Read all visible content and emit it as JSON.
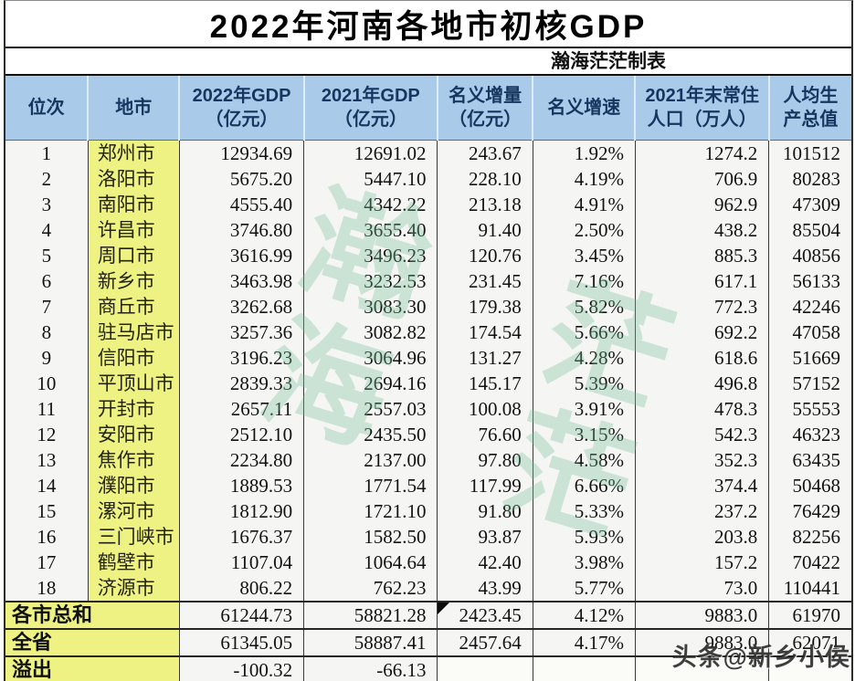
{
  "chart_data": {
    "type": "table",
    "title": "2022年河南各地市初核GDP",
    "maker_note": "瀚海茫茫制表",
    "columns": [
      {
        "line1": "位次",
        "line2": ""
      },
      {
        "line1": "地市",
        "line2": ""
      },
      {
        "line1": "2022年GDP",
        "line2": "（亿元）"
      },
      {
        "line1": "2021年GDP",
        "line2": "（亿元）"
      },
      {
        "line1": "名义增量",
        "line2": "（亿元）"
      },
      {
        "line1": "名义增速",
        "line2": ""
      },
      {
        "line1": "2021年末常住",
        "line2": "人口（万人）"
      },
      {
        "line1": "人均生",
        "line2": "产总值"
      }
    ],
    "rows": [
      {
        "rank": "1",
        "city": "郑州市",
        "gdp_2022": "12934.69",
        "gdp_2021": "12691.02",
        "nominal_increase": "243.67",
        "nominal_growth": "1.92%",
        "population": "1274.2",
        "per_capita": "101512"
      },
      {
        "rank": "2",
        "city": "洛阳市",
        "gdp_2022": "5675.20",
        "gdp_2021": "5447.10",
        "nominal_increase": "228.10",
        "nominal_growth": "4.19%",
        "population": "706.9",
        "per_capita": "80283"
      },
      {
        "rank": "3",
        "city": "南阳市",
        "gdp_2022": "4555.40",
        "gdp_2021": "4342.22",
        "nominal_increase": "213.18",
        "nominal_growth": "4.91%",
        "population": "962.9",
        "per_capita": "47309"
      },
      {
        "rank": "4",
        "city": "许昌市",
        "gdp_2022": "3746.80",
        "gdp_2021": "3655.40",
        "nominal_increase": "91.40",
        "nominal_growth": "2.50%",
        "population": "438.2",
        "per_capita": "85504"
      },
      {
        "rank": "5",
        "city": "周口市",
        "gdp_2022": "3616.99",
        "gdp_2021": "3496.23",
        "nominal_increase": "120.76",
        "nominal_growth": "3.45%",
        "population": "885.3",
        "per_capita": "40856"
      },
      {
        "rank": "6",
        "city": "新乡市",
        "gdp_2022": "3463.98",
        "gdp_2021": "3232.53",
        "nominal_increase": "231.45",
        "nominal_growth": "7.16%",
        "population": "617.1",
        "per_capita": "56133"
      },
      {
        "rank": "7",
        "city": "商丘市",
        "gdp_2022": "3262.68",
        "gdp_2021": "3083.30",
        "nominal_increase": "179.38",
        "nominal_growth": "5.82%",
        "population": "772.3",
        "per_capita": "42246"
      },
      {
        "rank": "8",
        "city": "驻马店市",
        "gdp_2022": "3257.36",
        "gdp_2021": "3082.82",
        "nominal_increase": "174.54",
        "nominal_growth": "5.66%",
        "population": "692.2",
        "per_capita": "47058"
      },
      {
        "rank": "9",
        "city": "信阳市",
        "gdp_2022": "3196.23",
        "gdp_2021": "3064.96",
        "nominal_increase": "131.27",
        "nominal_growth": "4.28%",
        "population": "618.6",
        "per_capita": "51669"
      },
      {
        "rank": "10",
        "city": "平顶山市",
        "gdp_2022": "2839.33",
        "gdp_2021": "2694.16",
        "nominal_increase": "145.17",
        "nominal_growth": "5.39%",
        "population": "496.8",
        "per_capita": "57152"
      },
      {
        "rank": "11",
        "city": "开封市",
        "gdp_2022": "2657.11",
        "gdp_2021": "2557.03",
        "nominal_increase": "100.08",
        "nominal_growth": "3.91%",
        "population": "478.3",
        "per_capita": "55553"
      },
      {
        "rank": "12",
        "city": "安阳市",
        "gdp_2022": "2512.10",
        "gdp_2021": "2435.50",
        "nominal_increase": "76.60",
        "nominal_growth": "3.15%",
        "population": "542.3",
        "per_capita": "46323"
      },
      {
        "rank": "13",
        "city": "焦作市",
        "gdp_2022": "2234.80",
        "gdp_2021": "2137.00",
        "nominal_increase": "97.80",
        "nominal_growth": "4.58%",
        "population": "352.3",
        "per_capita": "63435"
      },
      {
        "rank": "14",
        "city": "濮阳市",
        "gdp_2022": "1889.53",
        "gdp_2021": "1771.54",
        "nominal_increase": "117.99",
        "nominal_growth": "6.66%",
        "population": "374.4",
        "per_capita": "50468"
      },
      {
        "rank": "15",
        "city": "漯河市",
        "gdp_2022": "1812.90",
        "gdp_2021": "1721.10",
        "nominal_increase": "91.80",
        "nominal_growth": "5.33%",
        "population": "237.2",
        "per_capita": "76429"
      },
      {
        "rank": "16",
        "city": "三门峡市",
        "gdp_2022": "1676.37",
        "gdp_2021": "1582.50",
        "nominal_increase": "93.87",
        "nominal_growth": "5.93%",
        "population": "203.8",
        "per_capita": "82256"
      },
      {
        "rank": "17",
        "city": "鹤壁市",
        "gdp_2022": "1107.04",
        "gdp_2021": "1064.64",
        "nominal_increase": "42.40",
        "nominal_growth": "3.98%",
        "population": "157.2",
        "per_capita": "70422"
      },
      {
        "rank": "18",
        "city": "济源市",
        "gdp_2022": "806.22",
        "gdp_2021": "762.23",
        "nominal_increase": "43.99",
        "nominal_growth": "5.77%",
        "population": "73.0",
        "per_capita": "110441"
      }
    ],
    "summary": [
      {
        "label": "各市总和",
        "gdp_2022": "61244.73",
        "gdp_2021": "58821.28",
        "nominal_increase": "2423.45",
        "nominal_growth": "4.12%",
        "population": "9883.0",
        "per_capita": "61970"
      },
      {
        "label": "全省",
        "gdp_2022": "61345.05",
        "gdp_2021": "58887.41",
        "nominal_increase": "2457.64",
        "nominal_growth": "4.17%",
        "population": "9883.0",
        "per_capita": "62071"
      },
      {
        "label": "溢出",
        "gdp_2022": "-100.32",
        "gdp_2021": "-66.13",
        "nominal_increase": "",
        "nominal_growth": "",
        "population": "",
        "per_capita": ""
      }
    ]
  },
  "watermarks": {
    "calligraphy_left": "瀚海",
    "calligraphy_right": "茫茫",
    "footer": "头条@新乡小侯"
  },
  "colors": {
    "header_bg": "#a9cbe9",
    "header_text": "#16365f",
    "highlight_yellow": "#eef283",
    "cell_bg": "#f5f5f3",
    "watermark_green": "#74be96",
    "border_dark": "#2c2c2c"
  }
}
